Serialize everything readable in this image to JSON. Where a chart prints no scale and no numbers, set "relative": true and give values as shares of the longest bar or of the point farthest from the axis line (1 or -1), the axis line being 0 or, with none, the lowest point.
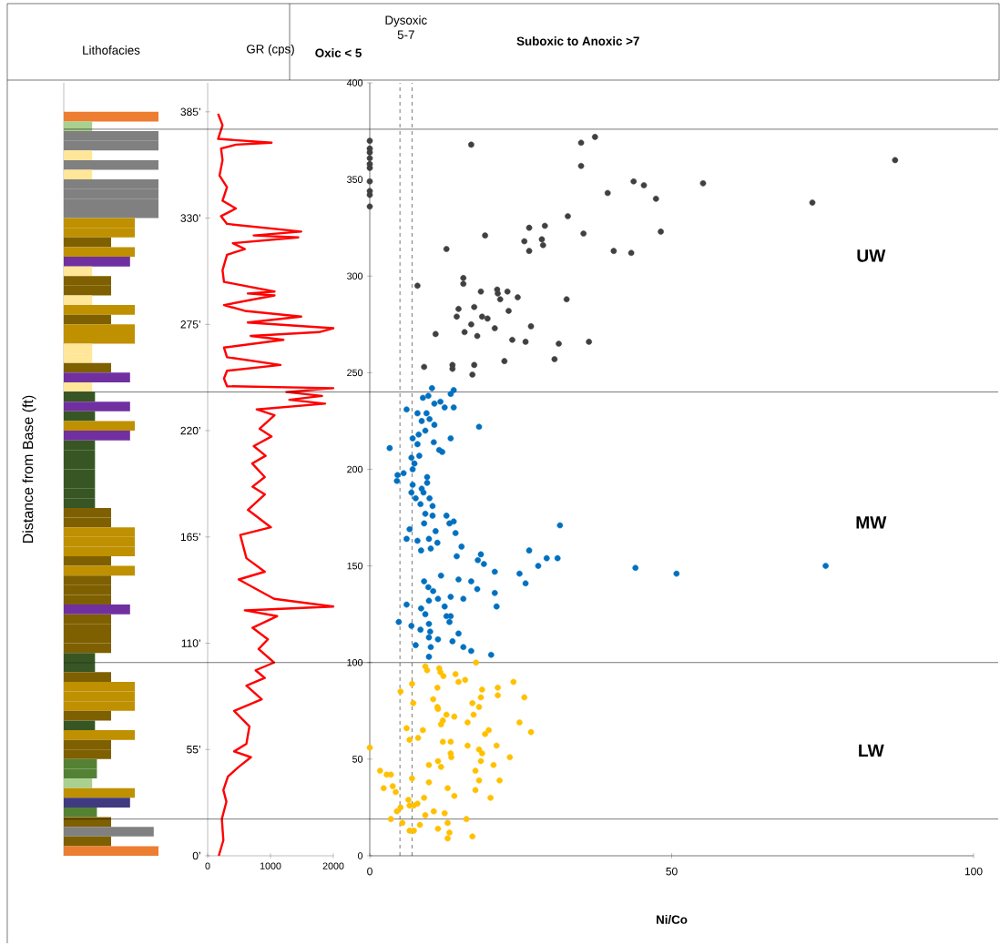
{
  "chart_data": [
    {
      "type": "bar",
      "orientation": "horizontal",
      "relative": true,
      "title": "Lithofacies",
      "categories": [
        null,
        null,
        null,
        null,
        null,
        null,
        null,
        null,
        null,
        null,
        null,
        null,
        null,
        null,
        null,
        null,
        null,
        null,
        null,
        null,
        null,
        null,
        null,
        null,
        null,
        null,
        null,
        null,
        null,
        null,
        null,
        null,
        null,
        null,
        null,
        null,
        null,
        null,
        null,
        null,
        null,
        null,
        null,
        null,
        null,
        null,
        null,
        null,
        null,
        null,
        null,
        null,
        null,
        null,
        null,
        null,
        null,
        null,
        null,
        null,
        null,
        null,
        null,
        null,
        null,
        null,
        null,
        null,
        null,
        null,
        null,
        null,
        null,
        null,
        null,
        null,
        null
      ],
      "values": [
        1,
        0.3,
        1,
        1,
        0.3,
        1,
        0.3,
        1,
        1,
        1,
        1,
        0.75,
        0.75,
        0.5,
        0.75,
        0.7,
        0.3,
        0.5,
        0.5,
        0.3,
        0.75,
        0.5,
        0.75,
        0.75,
        0.3,
        0.3,
        0.5,
        0.7,
        0.3,
        0.33,
        0.7,
        0.33,
        0.75,
        0.7,
        0.33,
        0.33,
        0.33,
        0.33,
        0.33,
        0.33,
        0.33,
        0.5,
        0.5,
        0.75,
        0.75,
        0.75,
        0.5,
        0.75,
        0.5,
        0.5,
        0.5,
        0.7,
        0.5,
        0.5,
        0.5,
        0.5,
        0.33,
        0.33,
        0.5,
        0.75,
        0.75,
        0.75,
        0.5,
        0.33,
        0.75,
        0.5,
        0.5,
        0.35,
        0.35,
        0.3,
        0.75,
        0.7,
        0.35,
        0.5,
        0.95,
        0.5,
        1
      ],
      "colors": [
        "#ed7d31",
        "#a9d08e",
        "#808080",
        "#808080",
        "#ffe699",
        "#808080",
        "#ffe699",
        "#808080",
        "#808080",
        "#808080",
        "#808080",
        "#bf9000",
        "#bf9000",
        "#7f6000",
        "#bf9000",
        "#7030a0",
        "#ffe699",
        "#7f6000",
        "#7f6000",
        "#ffe699",
        "#bf9000",
        "#7f6000",
        "#bf9000",
        "#bf9000",
        "#ffe699",
        "#ffe699",
        "#7f6000",
        "#7030a0",
        "#ffe699",
        "#375623",
        "#7030a0",
        "#375623",
        "#bf9000",
        "#7030a0",
        "#375623",
        "#375623",
        "#375623",
        "#375623",
        "#375623",
        "#375623",
        "#375623",
        "#7f6000",
        "#7f6000",
        "#bf9000",
        "#bf9000",
        "#bf9000",
        "#7f6000",
        "#bf9000",
        "#7f6000",
        "#7f6000",
        "#7f6000",
        "#7030a0",
        "#7f6000",
        "#7f6000",
        "#7f6000",
        "#7f6000",
        "#375623",
        "#375623",
        "#7f6000",
        "#bf9000",
        "#bf9000",
        "#bf9000",
        "#7f6000",
        "#375623",
        "#bf9000",
        "#7f6000",
        "#7f6000",
        "#548235",
        "#548235",
        "#a9d08e",
        "#bf9000",
        "#403b80",
        "#548235",
        "#7f6000",
        "#808080",
        "#7f6000",
        "#ed7d31"
      ]
    },
    {
      "type": "line",
      "title": "GR (cps)",
      "ylabel": "Distance from Base (ft)",
      "xlim": [
        0,
        2000
      ],
      "xticks": [
        0,
        1000,
        2000
      ],
      "ylim": [
        0,
        400
      ],
      "yticks": [
        {
          "value": 0,
          "label": "0’"
        },
        {
          "value": 55,
          "label": "55’"
        },
        {
          "value": 110,
          "label": "110’"
        },
        {
          "value": 165,
          "label": "165’"
        },
        {
          "value": 220,
          "label": "220’"
        },
        {
          "value": 275,
          "label": "275’"
        },
        {
          "value": 330,
          "label": "330’"
        },
        {
          "value": 385,
          "label": "385’"
        }
      ],
      "series": [
        {
          "color": "#ff0000",
          "x": [
            166,
            237,
            166,
            1017,
            450,
            213,
            237,
            189,
            308,
            237,
            450,
            213,
            308,
            1489,
            733,
            1442,
            401,
            591,
            308,
            237,
            260,
            1064,
            638,
            1064,
            260,
            591,
            1489,
            638,
            2000,
            1773,
            685,
            1206,
            260,
            308,
            1159,
            308,
            260,
            308,
            2000,
            1253,
            1820,
            1300,
            1868,
            780,
            1064,
            827,
            1017,
            733,
            922,
            709,
            909,
            713,
            909,
            641,
            1007,
            519,
            617,
            909,
            494,
            1057,
            2000,
            591,
            1105,
            713,
            959,
            811,
            1057,
            763,
            909,
            617,
            861,
            421,
            665,
            617,
            421,
            689,
            494,
            323,
            250,
            299,
            226,
            250,
            177
          ],
          "values": [
            384,
            378,
            371,
            369,
            368,
            366,
            360,
            352,
            346,
            339,
            335,
            331,
            327,
            323,
            321,
            320,
            317,
            314,
            311,
            303,
            297,
            292,
            291,
            290,
            285,
            282,
            279,
            276,
            273,
            271,
            269,
            267,
            263,
            258,
            254,
            251,
            247,
            243,
            242,
            240,
            238,
            236,
            234,
            231,
            228,
            221,
            217,
            212,
            207,
            203,
            196,
            191,
            187,
            179,
            170,
            166,
            154,
            147,
            143,
            133,
            129,
            127,
            124,
            118,
            112,
            107,
            100,
            96,
            92,
            88,
            81,
            75,
            67,
            58,
            54,
            51,
            46,
            41,
            34,
            28,
            19,
            8,
            0
          ]
        }
      ]
    },
    {
      "type": "scatter",
      "xlabel": "Ni/Co",
      "xlim": [
        0,
        100
      ],
      "xticks": [
        0,
        50,
        100
      ],
      "ylim": [
        0,
        400
      ],
      "yticks": [
        0,
        50,
        100,
        150,
        200,
        250,
        300,
        350,
        400
      ],
      "marker": "circle",
      "annotations": [
        "Oxic < 5",
        "Dysoxic 5-7",
        "Suboxic to Anoxic >7"
      ],
      "ref_lines": [
        {
          "axis": "x",
          "value": 5,
          "line_style": "dashed"
        },
        {
          "axis": "x",
          "value": 7,
          "line_style": "dashed"
        },
        {
          "axis": "y",
          "value": 19
        },
        {
          "axis": "y",
          "value": 100
        },
        {
          "axis": "y",
          "value": 240
        },
        {
          "axis": "y",
          "value": 376
        }
      ],
      "series": [
        {
          "name": "UW",
          "color": "#404040",
          "x": [
            0,
            0,
            0,
            0,
            0,
            0,
            0,
            0,
            0,
            0,
            16.8,
            35.0,
            37.3,
            35.0,
            43.7,
            45.4,
            55.2,
            73.3,
            87.0,
            39.4,
            47.4,
            32.8,
            48.2,
            26.4,
            29.0,
            19.1,
            35.4,
            25.6,
            28.5,
            28.7,
            26.4,
            12.7,
            40.4,
            43.3,
            7.9,
            15.5,
            15.5,
            18.4,
            21.1,
            21.2,
            21.6,
            22.8,
            24.5,
            32.6,
            14.7,
            17.3,
            23.0,
            14.4,
            18.6,
            19.5,
            16.8,
            20.7,
            26.7,
            10.9,
            15.7,
            17.8,
            23.6,
            25.8,
            31.3,
            36.3,
            9.0,
            13.7,
            13.7,
            17.3,
            17.0,
            22.3,
            30.6
          ],
          "values": [
            370,
            366,
            364,
            361,
            358,
            356,
            349,
            344,
            342,
            336,
            368,
            369,
            372,
            357,
            349,
            347,
            348,
            338,
            360,
            343,
            340,
            331,
            323,
            325,
            326,
            321,
            322,
            318,
            319,
            316,
            313,
            314,
            313,
            312,
            295,
            299,
            296,
            292,
            293,
            291,
            288,
            292,
            289,
            288,
            283,
            284,
            282,
            279,
            279,
            278,
            275,
            273,
            274,
            270,
            271,
            269,
            267,
            266,
            265,
            266,
            253,
            254,
            252,
            254,
            249,
            256,
            257
          ]
        },
        {
          "name": "MW",
          "color": "#0070c0",
          "x": [
            10.3,
            13.9,
            13.4,
            8.8,
            9.7,
            10.7,
            11.7,
            12.4,
            13.9,
            6.1,
            7.9,
            9.4,
            9.9,
            8.6,
            10.7,
            18.1,
            9.2,
            8.1,
            7.1,
            13.4,
            7.9,
            10.6,
            3.3,
            11.5,
            12.0,
            6.9,
            8.2,
            7.4,
            7.1,
            5.6,
            4.6,
            4.5,
            9.5,
            9.5,
            7.1,
            8.6,
            6.9,
            8.9,
            7.6,
            9.9,
            8.4,
            10.4,
            9.2,
            10.4,
            12.7,
            13.9,
            13.2,
            31.5,
            9.0,
            6.6,
            10.9,
            14.2,
            6.1,
            7.9,
            9.8,
            11.2,
            10.1,
            15.2,
            8.5,
            26.4,
            14.4,
            18.4,
            17.9,
            18.9,
            29.3,
            31.1,
            27.9,
            20.7,
            24.8,
            44.0,
            50.8,
            75.5,
            11.8,
            14.7,
            16.8,
            25.8,
            9.0,
            9.7,
            10.5,
            17.8,
            20.7,
            13.4,
            15.5,
            11.3,
            9.8,
            6.1,
            21.0,
            12.4,
            8.5,
            9.2,
            12.7,
            13.4,
            13.2,
            4.8,
            6.9,
            9.8,
            8.4,
            10.0,
            14.7,
            11.3,
            13.7,
            9.8,
            7.6,
            10.1,
            15.5,
            16.8,
            20.1,
            9.8
          ],
          "values": [
            242,
            241,
            239,
            237,
            238,
            234,
            235,
            232,
            232,
            231,
            229,
            229,
            226,
            225,
            223,
            222,
            220,
            218,
            216,
            216,
            213,
            214,
            211,
            210,
            209,
            206,
            207,
            203,
            200,
            198,
            197,
            194,
            196,
            193,
            192,
            190,
            188,
            188,
            185,
            185,
            182,
            181,
            177,
            176,
            176,
            173,
            172,
            171,
            172,
            169,
            168,
            167,
            164,
            163,
            164,
            162,
            159,
            160,
            158,
            158,
            155,
            156,
            153,
            151,
            154,
            154,
            150,
            147,
            146,
            149,
            146,
            150,
            145,
            143,
            142,
            141,
            142,
            139,
            137,
            138,
            136,
            134,
            133,
            133,
            132,
            130,
            129,
            129,
            128,
            125,
            124,
            124,
            121,
            121,
            119,
            120,
            117,
            116,
            115,
            112,
            111,
            113,
            109,
            108,
            108,
            106,
            104,
            103
          ]
        },
        {
          "name": "LW",
          "color": "#ffc000",
          "x": [
            9.2,
            11.5,
            9.5,
            17.6,
            11.7,
            12.2,
            14.2,
            14.7,
            15.8,
            23.8,
            7.0,
            5.1,
            11.2,
            18.6,
            21.2,
            21.2,
            18.4,
            7.2,
            10.5,
            25.6,
            17.0,
            18.1,
            11.2,
            11.3,
            17.2,
            12.7,
            14.0,
            12.1,
            11.8,
            16.2,
            24.8,
            6.1,
            8.8,
            26.7,
            19.7,
            19.1,
            6.6,
            8.0,
            12.1,
            13.4,
            16.2,
            0,
            21.0,
            18.1,
            18.6,
            18.4,
            13.4,
            13.5,
            23.2,
            11.3,
            9.8,
            11.8,
            20.5,
            17.5,
            1.7,
            2.8,
            3.5,
            7.0,
            21.5,
            18.1,
            9.8,
            2.3,
            3.8,
            4.3,
            12.9,
            17.5,
            14.0,
            20.0,
            6.4,
            9.0,
            7.9,
            6.6,
            5.1,
            7.3,
            4.5,
            10.6,
            12.4,
            9.2,
            3.5,
            16.0,
            12.9,
            5.4,
            8.3,
            6.6,
            7.3,
            11.3,
            13.2,
            12.9,
            17.0
          ],
          "values": [
            98,
            97,
            96,
            100,
            95,
            93,
            94,
            90,
            91,
            90,
            89,
            85,
            87,
            86,
            87,
            83,
            82,
            79,
            81,
            82,
            79,
            77,
            77,
            76,
            73,
            73,
            72,
            70,
            68,
            69,
            69,
            66,
            65,
            64,
            65,
            63,
            60,
            61,
            59,
            59,
            57,
            56,
            57,
            55,
            53,
            49,
            53,
            51,
            51,
            49,
            47,
            46,
            47,
            44,
            44,
            42,
            42,
            40,
            39,
            39,
            38,
            35,
            36,
            33,
            35,
            34,
            31,
            30,
            29,
            30,
            27,
            26,
            25,
            26,
            23,
            23,
            22,
            21,
            19,
            19,
            17,
            17,
            16,
            13,
            13,
            14,
            12,
            9,
            10
          ]
        }
      ]
    }
  ]
}
